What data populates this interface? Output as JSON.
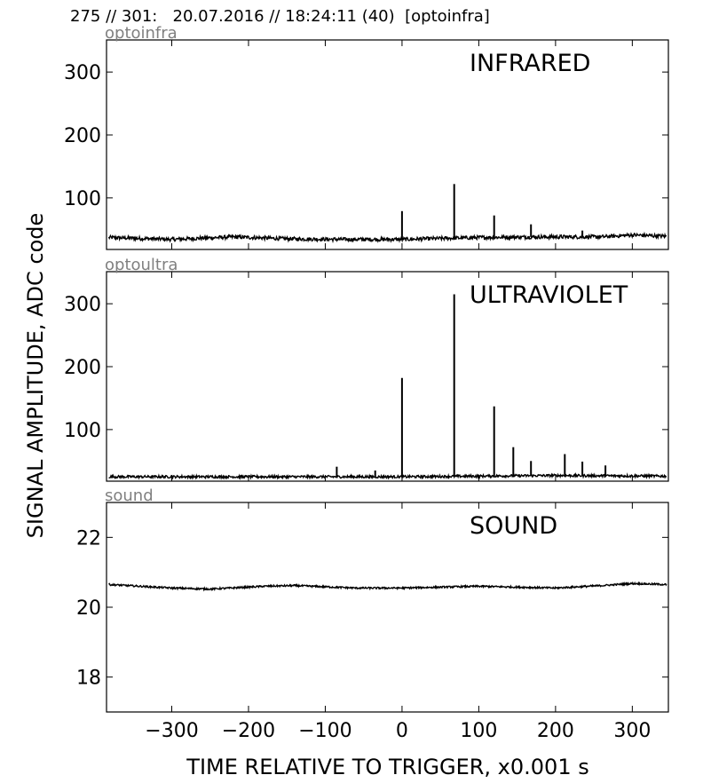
{
  "header": {
    "text": "275 // 301:   20.07.2016 // 18:24:11 (40)  [optoinfra]"
  },
  "chart_data": {
    "type": "line",
    "ylabel": "SIGNAL AMPLITUDE,  ADC code",
    "xlabel": "TIME RELATIVE TO TRIGGER,   x0.001 s",
    "xlim": [
      -385,
      347
    ],
    "xticks": [
      -300,
      -200,
      -100,
      0,
      100,
      200,
      300
    ],
    "xtick_labels": [
      "−300",
      "−200",
      "−100",
      "0",
      "100",
      "200",
      "300"
    ],
    "grid": false,
    "panels": [
      {
        "id": "infrared",
        "channel_label": "optoinfra",
        "title": "INFRARED",
        "ylim": [
          18,
          351
        ],
        "yticks": [
          100,
          200,
          300
        ],
        "baseline": [
          [
            -382,
            37
          ],
          [
            -300,
            34
          ],
          [
            -220,
            38
          ],
          [
            -150,
            35
          ],
          [
            -80,
            34
          ],
          [
            0,
            34
          ],
          [
            100,
            37
          ],
          [
            180,
            38
          ],
          [
            260,
            38
          ],
          [
            300,
            41
          ],
          [
            345,
            39
          ]
        ],
        "noise": 3,
        "peaks": [
          [
            0,
            79
          ],
          [
            68,
            122
          ],
          [
            120,
            72
          ],
          [
            168,
            58
          ],
          [
            235,
            48
          ]
        ]
      },
      {
        "id": "ultraviolet",
        "channel_label": "optoultra",
        "title": "ULTRAVIOLET",
        "ylim": [
          18,
          351
        ],
        "yticks": [
          100,
          200,
          300
        ],
        "baseline": [
          [
            -382,
            25
          ],
          [
            -200,
            25
          ],
          [
            -100,
            25
          ],
          [
            0,
            25
          ],
          [
            100,
            26
          ],
          [
            200,
            27
          ],
          [
            345,
            26
          ]
        ],
        "noise": 2,
        "peaks": [
          [
            -85,
            41
          ],
          [
            -35,
            35
          ],
          [
            0,
            182
          ],
          [
            68,
            315
          ],
          [
            120,
            137
          ],
          [
            145,
            72
          ],
          [
            168,
            50
          ],
          [
            212,
            61
          ],
          [
            235,
            49
          ],
          [
            265,
            43
          ]
        ]
      },
      {
        "id": "sound",
        "channel_label": "sound",
        "title": "SOUND",
        "ylim": [
          17,
          23
        ],
        "yticks": [
          18,
          20,
          22
        ],
        "baseline": [
          [
            -382,
            20.65
          ],
          [
            -300,
            20.55
          ],
          [
            -250,
            20.52
          ],
          [
            -180,
            20.6
          ],
          [
            -140,
            20.62
          ],
          [
            -60,
            20.55
          ],
          [
            0,
            20.55
          ],
          [
            100,
            20.6
          ],
          [
            200,
            20.55
          ],
          [
            260,
            20.62
          ],
          [
            300,
            20.68
          ],
          [
            345,
            20.65
          ]
        ],
        "noise": 0.025,
        "peaks": []
      }
    ]
  }
}
